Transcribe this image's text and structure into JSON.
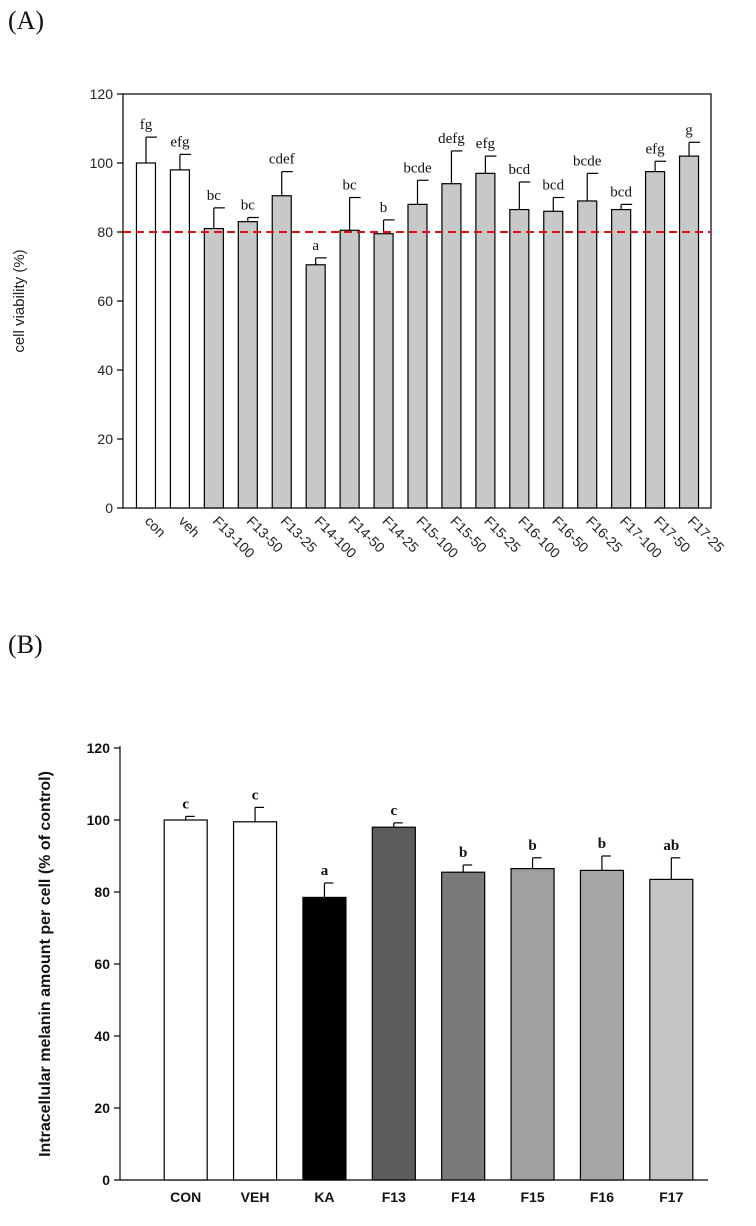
{
  "panels": {
    "a_label": "(A)",
    "b_label": "(B)"
  },
  "chart_data": [
    {
      "type": "bar",
      "panel": "(A)",
      "ylabel": "cell viability (%)",
      "xlabel": "",
      "ylim": [
        0,
        120
      ],
      "yticks": [
        0,
        20,
        40,
        60,
        80,
        100,
        120
      ],
      "categories": [
        "con",
        "veh",
        "F13-100",
        "F13-50",
        "F13-25",
        "F14-100",
        "F14-50",
        "F14-25",
        "F15-100",
        "F15-50",
        "F15-25",
        "F16-100",
        "F16-50",
        "F16-25",
        "F17-100",
        "F17-50",
        "F17-25"
      ],
      "values": [
        100,
        98,
        81,
        83,
        90.5,
        70.5,
        80.5,
        79.5,
        88,
        94,
        97,
        86.5,
        86,
        89,
        86.5,
        97.5,
        102
      ],
      "errors": [
        7.5,
        4.5,
        6,
        1.2,
        7,
        2,
        9.5,
        4,
        7,
        9.5,
        5,
        8,
        4,
        8,
        1.5,
        3,
        4
      ],
      "significance": [
        "fg",
        "efg",
        "bc",
        "bc",
        "cdef",
        "a",
        "bc",
        "b",
        "bcde",
        "defg",
        "efg",
        "bcd",
        "bcd",
        "bcde",
        "bcd",
        "efg",
        "g"
      ],
      "bar_colors": [
        "#ffffff",
        "#ffffff",
        "#c8c8c8",
        "#c8c8c8",
        "#c8c8c8",
        "#c8c8c8",
        "#c8c8c8",
        "#c8c8c8",
        "#c8c8c8",
        "#c8c8c8",
        "#c8c8c8",
        "#c8c8c8",
        "#c8c8c8",
        "#c8c8c8",
        "#c8c8c8",
        "#c8c8c8",
        "#c8c8c8"
      ],
      "reference_line": {
        "value": 80,
        "color": "#e01010",
        "style": "dashed"
      }
    },
    {
      "type": "bar",
      "panel": "(B)",
      "ylabel": "Intracellular melanin amount per cell (% of control)",
      "xlabel": "",
      "ylim": [
        0,
        120
      ],
      "yticks": [
        0,
        20,
        40,
        60,
        80,
        100,
        120
      ],
      "categories": [
        "CON",
        "VEH",
        "KA",
        "F13",
        "F14",
        "F15",
        "F16",
        "F17"
      ],
      "values": [
        100,
        99.5,
        78.5,
        98,
        85.5,
        86.5,
        86,
        83.5
      ],
      "errors": [
        1,
        4,
        4,
        1.2,
        2,
        3,
        4,
        6
      ],
      "significance": [
        "c",
        "c",
        "a",
        "c",
        "b",
        "b",
        "b",
        "ab"
      ],
      "bar_colors": [
        "#ffffff",
        "#ffffff",
        "#000000",
        "#5c5c5c",
        "#7a7a7a",
        "#a0a0a0",
        "#a6a6a6",
        "#c4c4c4"
      ]
    }
  ]
}
